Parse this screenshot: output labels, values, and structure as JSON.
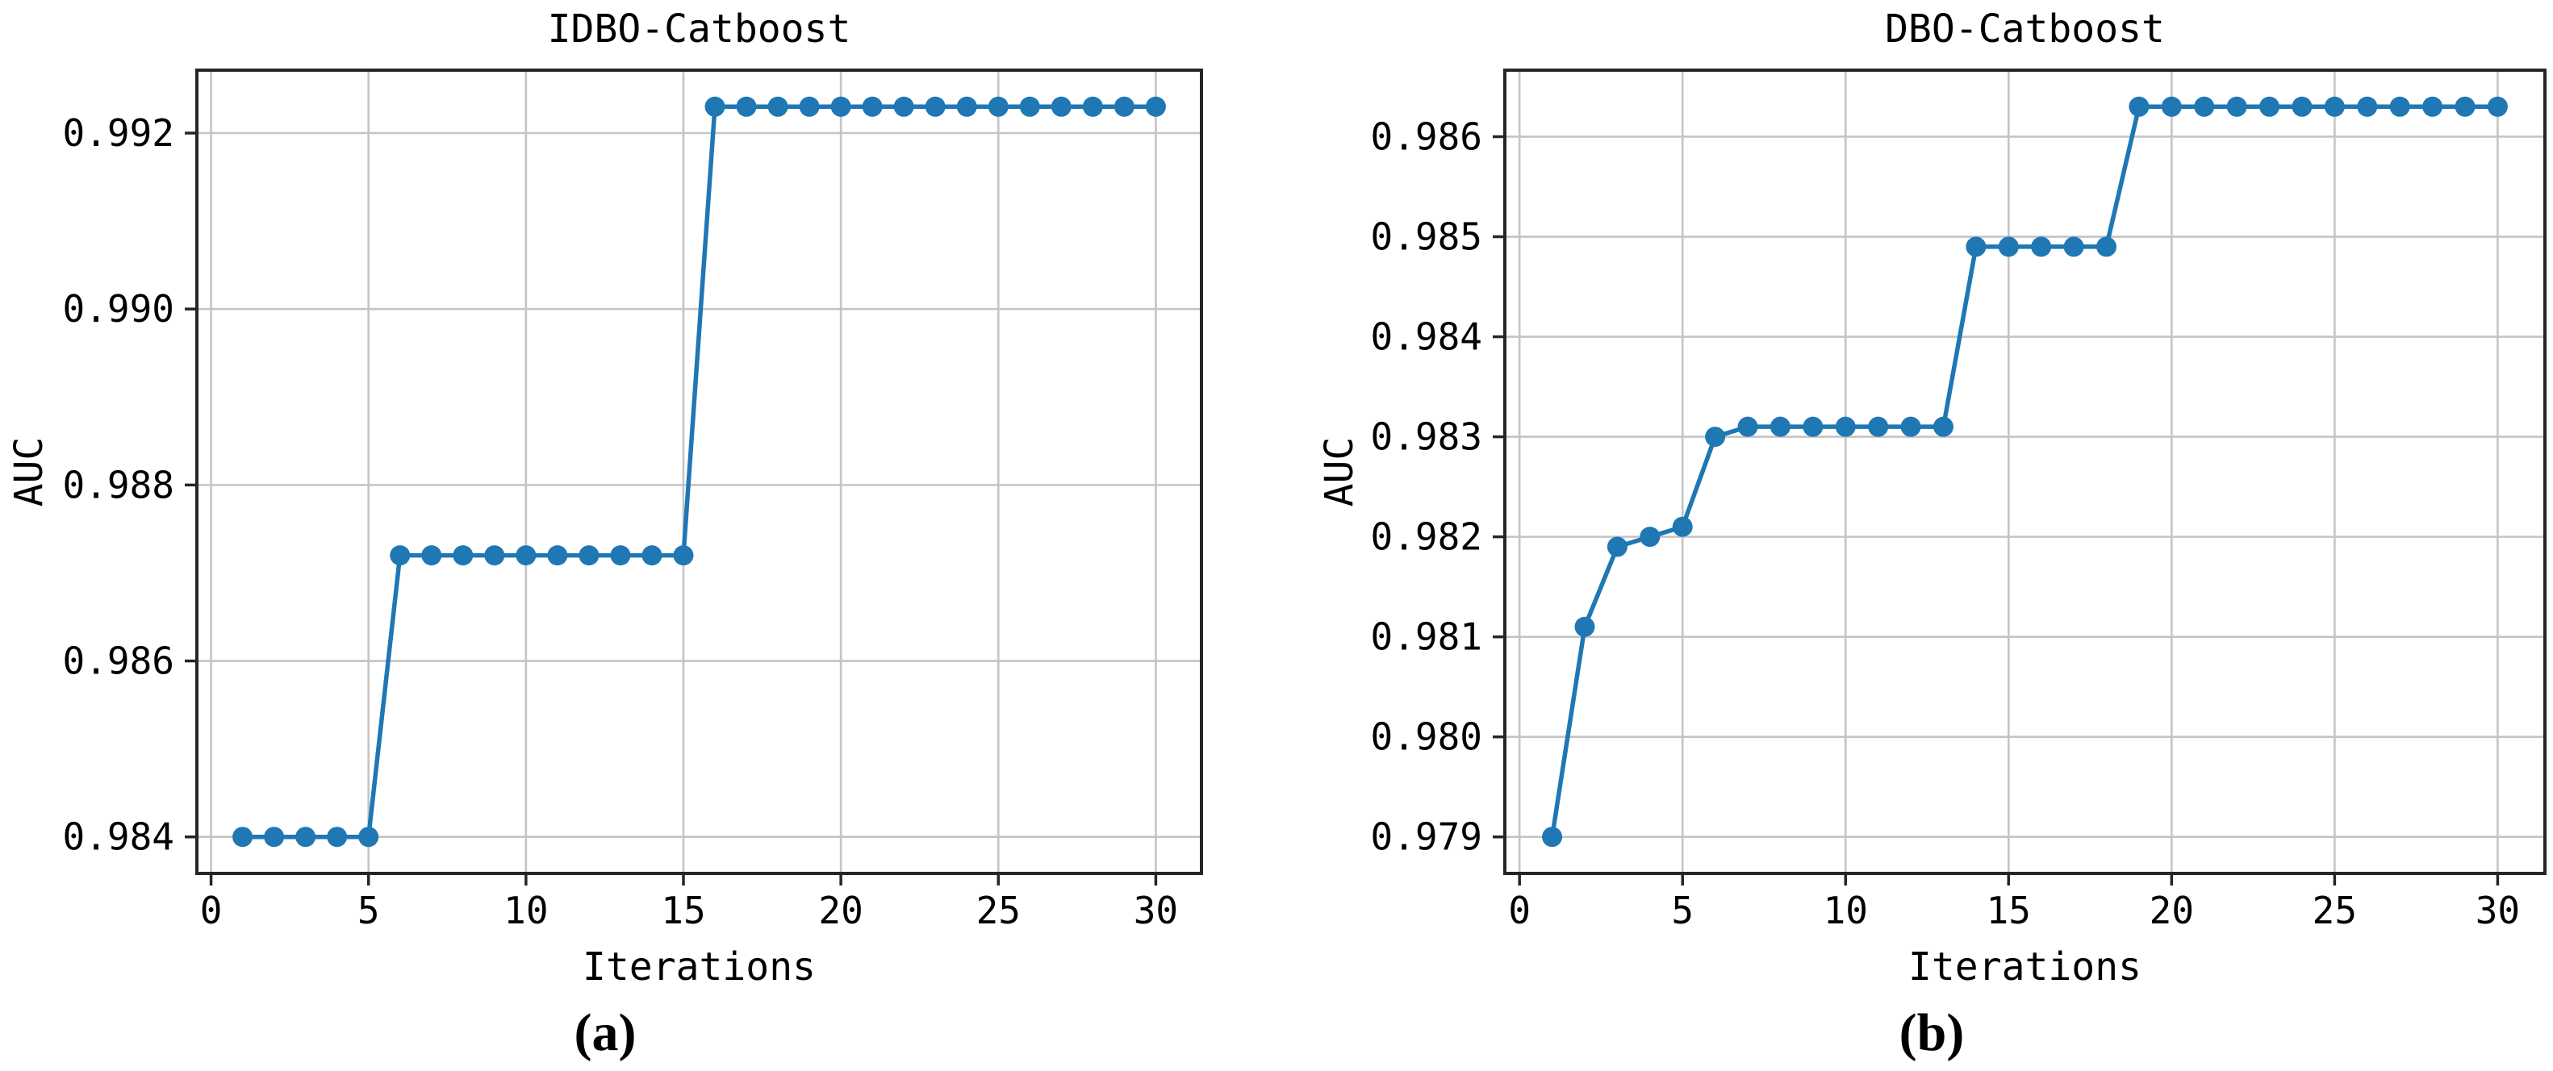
{
  "figure": {
    "background": "#ffffff"
  },
  "styles": {
    "line_color": "#1f77b4",
    "marker_color": "#1f77b4",
    "grid_color": "#c4c4c4",
    "spine_color": "#262626",
    "text_color": "#000000"
  },
  "captions": {
    "a": "(a)",
    "b": "(b)"
  },
  "chart_data": [
    {
      "id": "a",
      "type": "line",
      "title": "IDBO-Catboost",
      "xlabel": "Iterations",
      "ylabel": "AUC",
      "caption": "(a)",
      "grid": true,
      "legend_position": "none",
      "marker": "circle",
      "x": [
        1,
        2,
        3,
        4,
        5,
        6,
        7,
        8,
        9,
        10,
        11,
        12,
        13,
        14,
        15,
        16,
        17,
        18,
        19,
        20,
        21,
        22,
        23,
        24,
        25,
        26,
        27,
        28,
        29,
        30
      ],
      "series": [
        {
          "name": "IDBO-Catboost AUC",
          "values": [
            0.984,
            0.984,
            0.984,
            0.984,
            0.984,
            0.9872,
            0.9872,
            0.9872,
            0.9872,
            0.9872,
            0.9872,
            0.9872,
            0.9872,
            0.9872,
            0.9872,
            0.9923,
            0.9923,
            0.9923,
            0.9923,
            0.9923,
            0.9923,
            0.9923,
            0.9923,
            0.9923,
            0.9923,
            0.9923,
            0.9923,
            0.9923,
            0.9923,
            0.9923
          ]
        }
      ],
      "xlim": [
        -0.45,
        31.45
      ],
      "ylim": [
        0.983585,
        0.992715
      ],
      "xticks": [
        "0",
        "5",
        "10",
        "15",
        "20",
        "25",
        "30"
      ],
      "yticks": [
        "0.984",
        "0.986",
        "0.988",
        "0.990",
        "0.992"
      ]
    },
    {
      "id": "b",
      "type": "line",
      "title": "DBO-Catboost",
      "xlabel": "Iterations",
      "ylabel": "AUC",
      "caption": "(b)",
      "grid": true,
      "legend_position": "none",
      "marker": "circle",
      "x": [
        1,
        2,
        3,
        4,
        5,
        6,
        7,
        8,
        9,
        10,
        11,
        12,
        13,
        14,
        15,
        16,
        17,
        18,
        19,
        20,
        21,
        22,
        23,
        24,
        25,
        26,
        27,
        28,
        29,
        30
      ],
      "series": [
        {
          "name": "DBO-Catboost AUC",
          "values": [
            0.979,
            0.9811,
            0.9819,
            0.982,
            0.9821,
            0.983,
            0.9831,
            0.9831,
            0.9831,
            0.9831,
            0.9831,
            0.9831,
            0.9831,
            0.9849,
            0.9849,
            0.9849,
            0.9849,
            0.9849,
            0.9863,
            0.9863,
            0.9863,
            0.9863,
            0.9863,
            0.9863,
            0.9863,
            0.9863,
            0.9863,
            0.9863,
            0.9863,
            0.9863
          ]
        }
      ],
      "xlim": [
        -0.45,
        31.45
      ],
      "ylim": [
        0.978635,
        0.986665
      ],
      "xticks": [
        "0",
        "5",
        "10",
        "15",
        "20",
        "25",
        "30"
      ],
      "yticks": [
        "0.979",
        "0.980",
        "0.981",
        "0.982",
        "0.983",
        "0.984",
        "0.985",
        "0.986"
      ]
    }
  ]
}
